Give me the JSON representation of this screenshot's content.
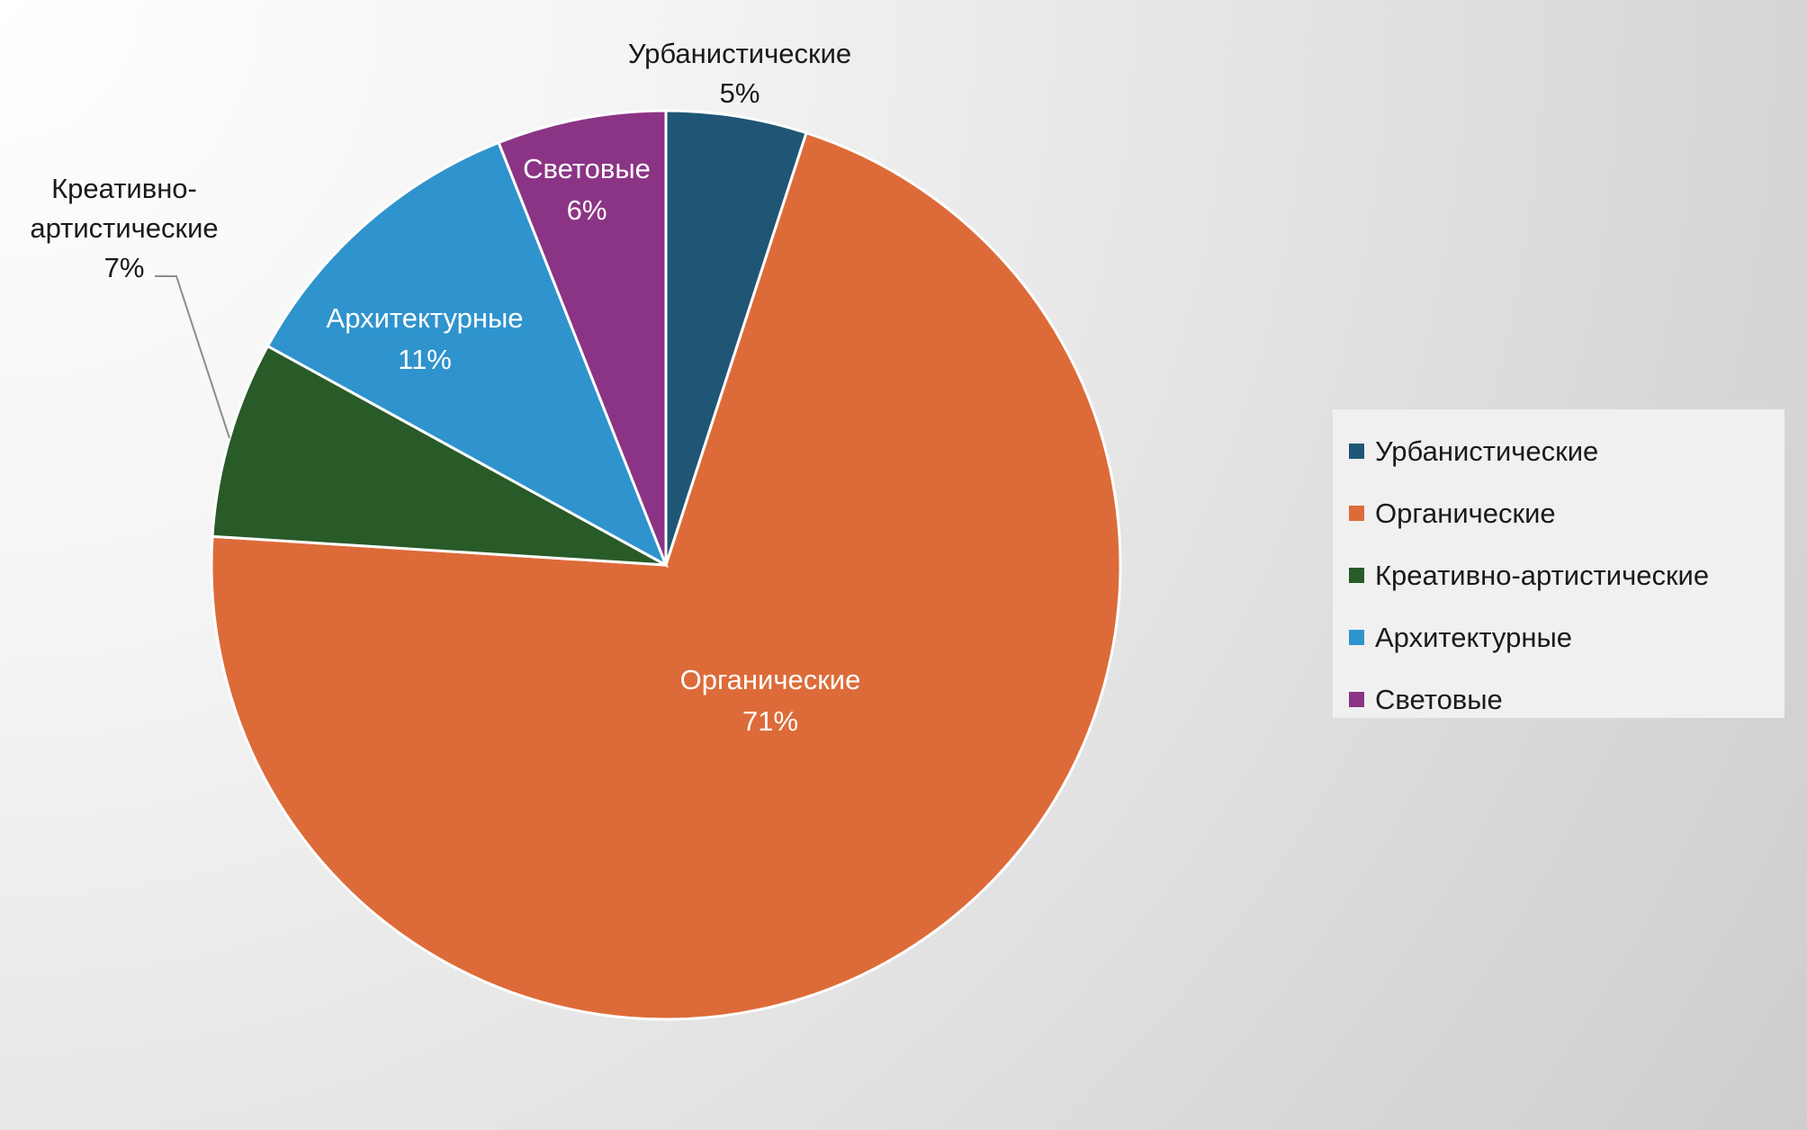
{
  "chart_data": {
    "type": "pie",
    "title": "",
    "legend_position": "right",
    "slices": [
      {
        "name": "Урбанистические",
        "value": 5,
        "label": "5%",
        "color": "#1f5675"
      },
      {
        "name": "Органические",
        "value": 71,
        "label": "71%",
        "color": "#dd6b39"
      },
      {
        "name": "Креативно-артистические",
        "value": 7,
        "label": "7%",
        "color": "#285b27"
      },
      {
        "name": "Архитектурные",
        "value": 11,
        "label": "11%",
        "color": "#2f93cd"
      },
      {
        "name": "Световые",
        "value": 6,
        "label": "6%",
        "color": "#8b3485"
      }
    ],
    "data_labels": [
      {
        "lines": [
          "Урбанистические",
          "5%"
        ]
      },
      {
        "lines": [
          "Органические",
          "71%"
        ]
      },
      {
        "lines": [
          "Креативно-",
          "артистические",
          "7%"
        ]
      },
      {
        "lines": [
          "Архитектурные",
          "11%"
        ]
      },
      {
        "lines": [
          "Световые",
          "6%"
        ]
      }
    ]
  }
}
